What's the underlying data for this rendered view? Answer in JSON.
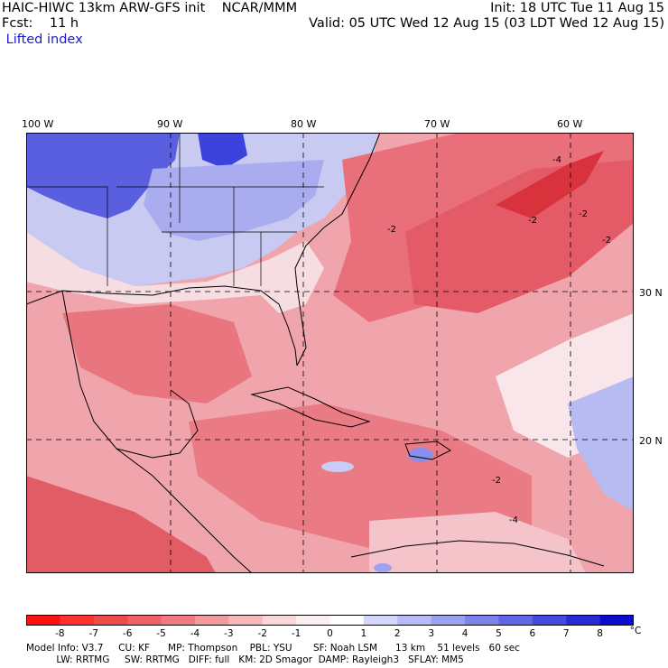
{
  "header": {
    "left_line1": "HAIC-HIWC 13km ARW-GFS init    NCAR/MMM",
    "left_line2": "Fcst:    11 h",
    "left_line3": " Lifted index",
    "right_line1": "Init: 18 UTC Tue 11 Aug 15",
    "right_line2": "Valid: 05 UTC Wed 12 Aug 15 (03 LDT Wed 12 Aug 15)"
  },
  "map": {
    "longitude_labels": [
      "100 W",
      "90 W",
      "80 W",
      "70 W",
      "60 W"
    ],
    "latitude_labels": [
      "30 N",
      "20 N"
    ],
    "contour_labels": [
      "-4",
      "-2",
      "-2",
      "-2",
      "-2",
      "-2",
      "-4"
    ],
    "colors": {
      "cold_max": "#1e1ed2",
      "cool": "#8c8ced",
      "neutral": "#f5e9ee",
      "warm": "#f0a0a8",
      "hot": "#e8646e",
      "hot_max": "#d82b30"
    }
  },
  "colorbar": {
    "labels": [
      "-8",
      "-7",
      "-6",
      "-5",
      "-4",
      "-3",
      "-2",
      "-1",
      "0",
      "1",
      "2",
      "3",
      "4",
      "5",
      "6",
      "7",
      "8"
    ],
    "unit": "°C",
    "colors": [
      "#ff1010",
      "#ff3030",
      "#ee4a4a",
      "#f06068",
      "#f07a80",
      "#f29a9e",
      "#f6b8bb",
      "#f9d6d8",
      "#fbeff0",
      "#ffffff",
      "#d4d7fb",
      "#b8bcf6",
      "#9ba0f1",
      "#7e83ec",
      "#6166e6",
      "#4449df",
      "#262bd6",
      "#0a0ecc"
    ]
  },
  "footer": {
    "line1": "Model Info: V3.7     CU: KF      MP: Thompson    PBL: YSU       SF: Noah LSM      13 km    51 levels   60 sec",
    "line2": "          LW: RRTMG     SW: RRTMG   DIFF: full   KM: 2D Smagor  DAMP: Rayleigh3   SFLAY: MM5"
  }
}
